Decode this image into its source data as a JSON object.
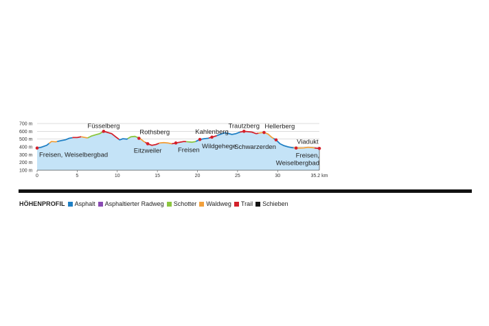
{
  "chart_data": {
    "type": "area",
    "title": "HÖHENPROFIL",
    "xlabel": "km",
    "ylabel": "m",
    "x_unit": "km",
    "xlim": [
      0,
      35.2
    ],
    "ylim": [
      100,
      700
    ],
    "x_ticks": [
      0,
      5,
      10,
      15,
      20,
      25,
      30
    ],
    "x_tick_labels": [
      "0",
      "5",
      "10",
      "15",
      "20",
      "25",
      "30"
    ],
    "x_end_label": "35.2 km",
    "y_ticks": [
      100,
      200,
      300,
      400,
      500,
      600,
      700
    ],
    "y_tick_labels": [
      "100 m",
      "200 m",
      "300 m",
      "400 m",
      "500 m",
      "600 m",
      "700 m"
    ],
    "fill_color": "#c4e3f7",
    "grid_color": "#bbbbbb",
    "marker_color": "#d4202a",
    "profile": [
      [
        0,
        385
      ],
      [
        0.5,
        395
      ],
      [
        1.2,
        420
      ],
      [
        1.8,
        470
      ],
      [
        2.3,
        465
      ],
      [
        3,
        480
      ],
      [
        3.5,
        490
      ],
      [
        4,
        510
      ],
      [
        4.5,
        520
      ],
      [
        5,
        520
      ],
      [
        5.5,
        530
      ],
      [
        6,
        520
      ],
      [
        6.3,
        515
      ],
      [
        6.8,
        540
      ],
      [
        7.3,
        555
      ],
      [
        7.8,
        570
      ],
      [
        8.3,
        600
      ],
      [
        8.8,
        585
      ],
      [
        9.3,
        570
      ],
      [
        9.8,
        530
      ],
      [
        10.3,
        490
      ],
      [
        10.7,
        505
      ],
      [
        11.2,
        500
      ],
      [
        11.7,
        530
      ],
      [
        12.2,
        535
      ],
      [
        12.8,
        510
      ],
      [
        13.3,
        470
      ],
      [
        13.8,
        440
      ],
      [
        14.3,
        420
      ],
      [
        14.8,
        430
      ],
      [
        15.3,
        450
      ],
      [
        15.8,
        455
      ],
      [
        16.3,
        450
      ],
      [
        16.8,
        440
      ],
      [
        17.3,
        450
      ],
      [
        17.8,
        460
      ],
      [
        18.3,
        470
      ],
      [
        18.8,
        465
      ],
      [
        19.3,
        460
      ],
      [
        19.8,
        470
      ],
      [
        20.3,
        495
      ],
      [
        20.8,
        505
      ],
      [
        21.3,
        510
      ],
      [
        21.8,
        525
      ],
      [
        22.3,
        540
      ],
      [
        22.8,
        560
      ],
      [
        23.3,
        580
      ],
      [
        23.8,
        575
      ],
      [
        24.3,
        560
      ],
      [
        24.8,
        570
      ],
      [
        25.3,
        590
      ],
      [
        25.8,
        600
      ],
      [
        26.3,
        595
      ],
      [
        26.8,
        590
      ],
      [
        27.3,
        570
      ],
      [
        27.8,
        580
      ],
      [
        28.3,
        585
      ],
      [
        28.8,
        565
      ],
      [
        29.3,
        520
      ],
      [
        29.8,
        490
      ],
      [
        30.3,
        440
      ],
      [
        30.8,
        415
      ],
      [
        31.3,
        400
      ],
      [
        31.8,
        390
      ],
      [
        32.3,
        385
      ],
      [
        32.8,
        385
      ],
      [
        33.3,
        387
      ],
      [
        33.8,
        395
      ],
      [
        34.3,
        390
      ],
      [
        34.8,
        383
      ],
      [
        35.2,
        380
      ]
    ],
    "segments": [
      {
        "surface": "Asphalt",
        "from": 0,
        "to": 1.5
      },
      {
        "surface": "Waldweg",
        "from": 1.5,
        "to": 2.5
      },
      {
        "surface": "Asphalt",
        "from": 2.5,
        "to": 4.4
      },
      {
        "surface": "Trail",
        "from": 4.4,
        "to": 5.5
      },
      {
        "surface": "Waldweg",
        "from": 5.5,
        "to": 6.3
      },
      {
        "surface": "Schotter",
        "from": 6.3,
        "to": 8.1
      },
      {
        "surface": "Trail",
        "from": 8.1,
        "to": 10.2
      },
      {
        "surface": "Asphalt",
        "from": 10.2,
        "to": 11.3
      },
      {
        "surface": "Schotter",
        "from": 11.3,
        "to": 12.6
      },
      {
        "surface": "Waldweg",
        "from": 12.6,
        "to": 13.5
      },
      {
        "surface": "Trail",
        "from": 13.5,
        "to": 15.2
      },
      {
        "surface": "Waldweg",
        "from": 15.2,
        "to": 16.8
      },
      {
        "surface": "Trail",
        "from": 16.8,
        "to": 18.6
      },
      {
        "surface": "Schotter",
        "from": 18.6,
        "to": 19.8
      },
      {
        "surface": "Asphalt",
        "from": 19.8,
        "to": 21.4
      },
      {
        "surface": "Trail",
        "from": 21.4,
        "to": 22.4
      },
      {
        "surface": "Asphalt",
        "from": 22.4,
        "to": 25.3
      },
      {
        "surface": "Trail",
        "from": 25.3,
        "to": 27.6
      },
      {
        "surface": "Waldweg",
        "from": 27.6,
        "to": 29.5
      },
      {
        "surface": "Asphalt",
        "from": 29.5,
        "to": 32.0
      },
      {
        "surface": "Waldweg",
        "from": 32.0,
        "to": 34.6
      },
      {
        "surface": "Trail",
        "from": 34.6,
        "to": 35.2
      }
    ],
    "waypoints": [
      {
        "name": "Freisen, Weiselbergbad",
        "km": 0,
        "elev": 385,
        "label_pos": "below-right"
      },
      {
        "name": "Füsselberg",
        "km": 8.3,
        "elev": 600,
        "label_pos": "above"
      },
      {
        "name": "Rothsberg",
        "km": 12.7,
        "elev": 510,
        "label_pos": "above-right"
      },
      {
        "name": "Eitzweiler",
        "km": 13.8,
        "elev": 440,
        "label_pos": "below"
      },
      {
        "name": "Freisen",
        "km": 17.3,
        "elev": 450,
        "label_pos": "below-right"
      },
      {
        "name": "Wildgehege",
        "km": 20.3,
        "elev": 495,
        "label_pos": "below-right"
      },
      {
        "name": "Kahlenberg",
        "km": 21.8,
        "elev": 525,
        "label_pos": "above"
      },
      {
        "name": "Trautzberg",
        "km": 25.8,
        "elev": 600,
        "label_pos": "above"
      },
      {
        "name": "Hellerberg",
        "km": 28.3,
        "elev": 585,
        "label_pos": "above-right"
      },
      {
        "name": "Schwarzerden",
        "km": 29.8,
        "elev": 490,
        "label_pos": "below-left"
      },
      {
        "name": "Viadukt",
        "km": 32.3,
        "elev": 385,
        "label_pos": "above-right"
      },
      {
        "name": "Freisen, Weiselbergbad",
        "km": 35.2,
        "elev": 380,
        "label_pos": "below-left"
      }
    ],
    "legend": [
      {
        "name": "Asphalt",
        "color": "#1e7fc4"
      },
      {
        "name": "Asphaltierter Radweg",
        "color": "#8a4bb3"
      },
      {
        "name": "Schotter",
        "color": "#8cc63f"
      },
      {
        "name": "Waldweg",
        "color": "#f2a03c"
      },
      {
        "name": "Trail",
        "color": "#d4202a"
      },
      {
        "name": "Schieben",
        "color": "#111111"
      }
    ]
  }
}
